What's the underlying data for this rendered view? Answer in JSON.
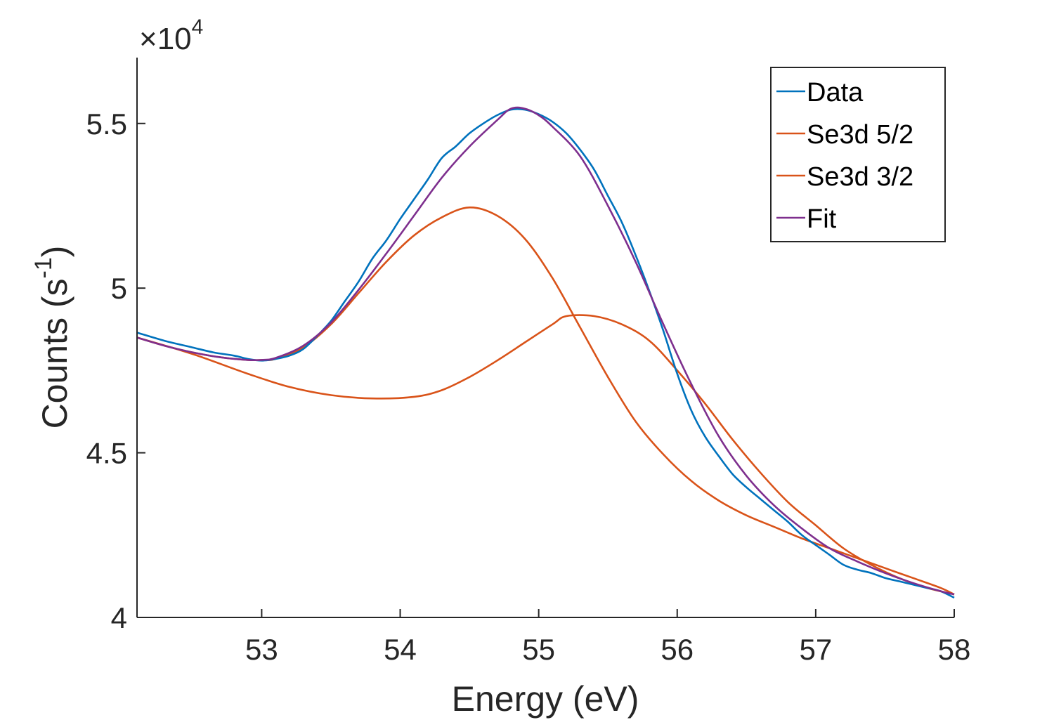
{
  "chart_data": {
    "type": "line",
    "xlabel": "Energy (eV)",
    "ylabel_main": "Counts (s",
    "ylabel_sup": "-1",
    "ylabel_close": ")",
    "y_multiplier_symbol": "×10",
    "y_multiplier_exp": "4",
    "xlim": [
      52.1,
      58
    ],
    "ylim": [
      40000,
      57000
    ],
    "x_ticks": [
      53,
      54,
      55,
      56,
      57,
      58
    ],
    "x_tick_labels": [
      "53",
      "54",
      "55",
      "56",
      "57",
      "58"
    ],
    "y_ticks": [
      40000,
      45000,
      50000,
      55000
    ],
    "y_tick_labels": [
      "4",
      "4.5",
      "5",
      "5.5"
    ],
    "grid": false,
    "legend_position": "top-right",
    "series": [
      {
        "name": "Data",
        "color": "#0072BD",
        "points": [
          [
            52.1,
            48650
          ],
          [
            52.3,
            48400
          ],
          [
            52.5,
            48200
          ],
          [
            52.65,
            48050
          ],
          [
            52.8,
            47950
          ],
          [
            52.9,
            47850
          ],
          [
            53.0,
            47800
          ],
          [
            53.1,
            47850
          ],
          [
            53.2,
            47950
          ],
          [
            53.3,
            48150
          ],
          [
            53.4,
            48550
          ],
          [
            53.5,
            49000
          ],
          [
            53.6,
            49600
          ],
          [
            53.7,
            50200
          ],
          [
            53.8,
            50900
          ],
          [
            53.9,
            51450
          ],
          [
            54.0,
            52100
          ],
          [
            54.1,
            52700
          ],
          [
            54.2,
            53300
          ],
          [
            54.3,
            53950
          ],
          [
            54.4,
            54300
          ],
          [
            54.5,
            54700
          ],
          [
            54.6,
            55000
          ],
          [
            54.7,
            55250
          ],
          [
            54.8,
            55420
          ],
          [
            54.9,
            55420
          ],
          [
            55.0,
            55280
          ],
          [
            55.1,
            55050
          ],
          [
            55.2,
            54700
          ],
          [
            55.3,
            54200
          ],
          [
            55.4,
            53600
          ],
          [
            55.5,
            52800
          ],
          [
            55.6,
            52000
          ],
          [
            55.7,
            51000
          ],
          [
            55.8,
            49900
          ],
          [
            55.9,
            48700
          ],
          [
            56.0,
            47400
          ],
          [
            56.1,
            46300
          ],
          [
            56.2,
            45500
          ],
          [
            56.3,
            44900
          ],
          [
            56.4,
            44350
          ],
          [
            56.5,
            43950
          ],
          [
            56.6,
            43600
          ],
          [
            56.7,
            43250
          ],
          [
            56.8,
            42900
          ],
          [
            56.9,
            42500
          ],
          [
            57.0,
            42200
          ],
          [
            57.1,
            41900
          ],
          [
            57.2,
            41600
          ],
          [
            57.3,
            41450
          ],
          [
            57.4,
            41350
          ],
          [
            57.5,
            41200
          ],
          [
            57.6,
            41100
          ],
          [
            57.7,
            41000
          ],
          [
            57.8,
            40900
          ],
          [
            57.9,
            40800
          ],
          [
            58.0,
            40600
          ]
        ]
      },
      {
        "name": "Se3d 5/2",
        "color": "#D95319",
        "points": [
          [
            52.1,
            48500
          ],
          [
            52.3,
            48250
          ],
          [
            52.5,
            48050
          ],
          [
            52.7,
            47900
          ],
          [
            52.9,
            47820
          ],
          [
            53.0,
            47820
          ],
          [
            53.1,
            47850
          ],
          [
            53.3,
            48200
          ],
          [
            53.5,
            48900
          ],
          [
            53.7,
            49850
          ],
          [
            53.9,
            50800
          ],
          [
            54.1,
            51600
          ],
          [
            54.3,
            52150
          ],
          [
            54.5,
            52450
          ],
          [
            54.7,
            52200
          ],
          [
            54.9,
            51500
          ],
          [
            55.1,
            50300
          ],
          [
            55.3,
            48800
          ],
          [
            55.5,
            47300
          ],
          [
            55.7,
            45950
          ],
          [
            55.9,
            44950
          ],
          [
            56.1,
            44150
          ],
          [
            56.3,
            43550
          ],
          [
            56.5,
            43100
          ],
          [
            56.7,
            42750
          ],
          [
            56.9,
            42400
          ],
          [
            57.1,
            42100
          ],
          [
            57.3,
            41800
          ],
          [
            57.5,
            41500
          ],
          [
            57.7,
            41200
          ],
          [
            57.9,
            40900
          ],
          [
            58.0,
            40700
          ]
        ]
      },
      {
        "name": "Se3d 3/2",
        "color": "#D95319",
        "points": [
          [
            52.1,
            48500
          ],
          [
            52.5,
            48000
          ],
          [
            52.9,
            47400
          ],
          [
            53.2,
            47000
          ],
          [
            53.5,
            46750
          ],
          [
            53.8,
            46650
          ],
          [
            54.1,
            46700
          ],
          [
            54.3,
            46900
          ],
          [
            54.5,
            47300
          ],
          [
            54.7,
            47800
          ],
          [
            54.9,
            48350
          ],
          [
            55.1,
            48900
          ],
          [
            55.2,
            49150
          ],
          [
            55.4,
            49150
          ],
          [
            55.6,
            48900
          ],
          [
            55.8,
            48400
          ],
          [
            56.0,
            47500
          ],
          [
            56.2,
            46500
          ],
          [
            56.4,
            45400
          ],
          [
            56.6,
            44400
          ],
          [
            56.8,
            43500
          ],
          [
            57.0,
            42800
          ],
          [
            57.2,
            42100
          ],
          [
            57.4,
            41600
          ],
          [
            57.6,
            41200
          ],
          [
            57.8,
            40900
          ],
          [
            58.0,
            40700
          ]
        ]
      },
      {
        "name": "Fit",
        "color": "#7E2F8E",
        "points": [
          [
            52.1,
            48500
          ],
          [
            52.3,
            48250
          ],
          [
            52.5,
            48050
          ],
          [
            52.7,
            47900
          ],
          [
            52.9,
            47820
          ],
          [
            53.0,
            47820
          ],
          [
            53.1,
            47880
          ],
          [
            53.3,
            48250
          ],
          [
            53.5,
            48950
          ],
          [
            53.7,
            49950
          ],
          [
            53.9,
            51050
          ],
          [
            54.1,
            52200
          ],
          [
            54.3,
            53350
          ],
          [
            54.5,
            54300
          ],
          [
            54.7,
            55100
          ],
          [
            54.8,
            55450
          ],
          [
            54.9,
            55450
          ],
          [
            55.0,
            55250
          ],
          [
            55.1,
            54900
          ],
          [
            55.3,
            54000
          ],
          [
            55.5,
            52500
          ],
          [
            55.7,
            50800
          ],
          [
            55.9,
            48900
          ],
          [
            56.1,
            47100
          ],
          [
            56.3,
            45500
          ],
          [
            56.5,
            44300
          ],
          [
            56.7,
            43400
          ],
          [
            56.9,
            42700
          ],
          [
            57.1,
            42100
          ],
          [
            57.3,
            41700
          ],
          [
            57.5,
            41350
          ],
          [
            57.7,
            41050
          ],
          [
            57.9,
            40800
          ],
          [
            58.0,
            40700
          ]
        ]
      }
    ]
  }
}
